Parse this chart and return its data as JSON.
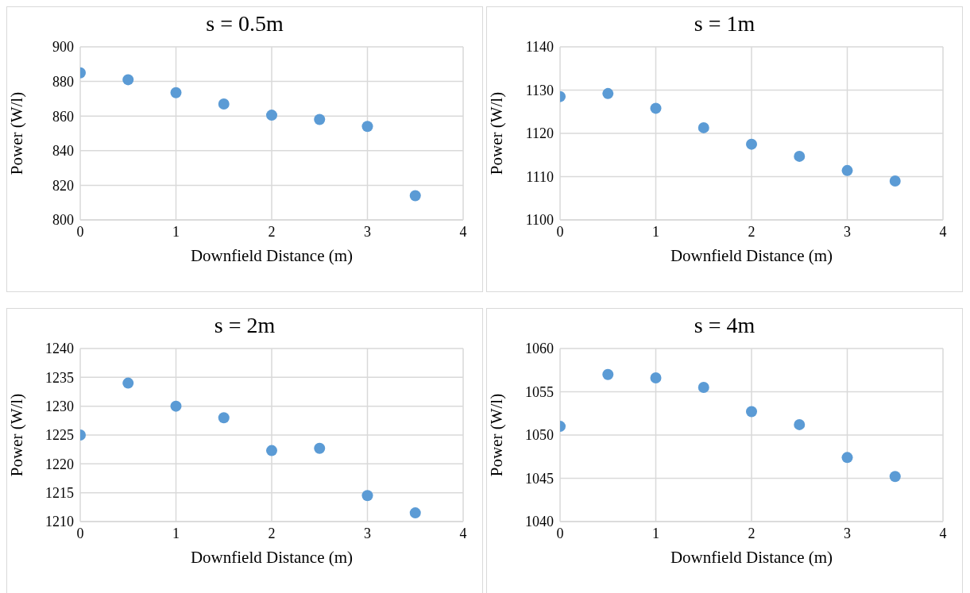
{
  "chart_data": [
    {
      "type": "scatter",
      "title": "s = 0.5m",
      "xlabel": "Downfield Distance (m)",
      "ylabel": "Power (W/l)",
      "x": [
        0,
        0.5,
        1,
        1.5,
        2,
        2.5,
        3,
        3.5
      ],
      "values": [
        885,
        881,
        873.5,
        867,
        860.5,
        858,
        854,
        814
      ],
      "color": "#5b9bd5",
      "xlim": [
        0,
        4
      ],
      "xticks": [
        0,
        1,
        2,
        3,
        4
      ],
      "ylim": [
        800,
        900
      ],
      "yticks": [
        800,
        820,
        840,
        860,
        880,
        900
      ],
      "grid": true,
      "marker": "circle"
    },
    {
      "type": "scatter",
      "title": "s = 1m",
      "xlabel": "Downfield Distance (m)",
      "ylabel": "Power (W/l)",
      "x": [
        0,
        0.5,
        1,
        1.5,
        2,
        2.5,
        3,
        3.5
      ],
      "values": [
        1128.5,
        1129.2,
        1125.8,
        1121.3,
        1117.5,
        1114.7,
        1111.4,
        1109
      ],
      "color": "#5b9bd5",
      "xlim": [
        0,
        4
      ],
      "xticks": [
        0,
        1,
        2,
        3,
        4
      ],
      "ylim": [
        1100,
        1140
      ],
      "yticks": [
        1100,
        1110,
        1120,
        1130,
        1140
      ],
      "grid": true,
      "marker": "circle"
    },
    {
      "type": "scatter",
      "title": "s = 2m",
      "xlabel": "Downfield Distance (m)",
      "ylabel": "Power (W/l)",
      "x": [
        0,
        0.5,
        1,
        1.5,
        2,
        2.5,
        3,
        3.5
      ],
      "values": [
        1225,
        1234,
        1230,
        1228,
        1222.3,
        1222.7,
        1214.5,
        1211.5
      ],
      "color": "#5b9bd5",
      "xlim": [
        0,
        4
      ],
      "xticks": [
        0,
        1,
        2,
        3,
        4
      ],
      "ylim": [
        1210,
        1240
      ],
      "yticks": [
        1210,
        1215,
        1220,
        1225,
        1230,
        1235,
        1240
      ],
      "grid": true,
      "marker": "circle"
    },
    {
      "type": "scatter",
      "title": "s = 4m",
      "xlabel": "Downfield Distance (m)",
      "ylabel": "Power (W/l)",
      "x": [
        0,
        0.5,
        1,
        1.5,
        2,
        2.5,
        3,
        3.5
      ],
      "values": [
        1051,
        1057,
        1056.6,
        1055.5,
        1052.7,
        1051.2,
        1047.4,
        1045.2
      ],
      "color": "#5b9bd5",
      "xlim": [
        0,
        4
      ],
      "xticks": [
        0,
        1,
        2,
        3,
        4
      ],
      "ylim": [
        1040,
        1060
      ],
      "yticks": [
        1040,
        1045,
        1050,
        1055,
        1060
      ],
      "grid": true,
      "marker": "circle"
    }
  ]
}
